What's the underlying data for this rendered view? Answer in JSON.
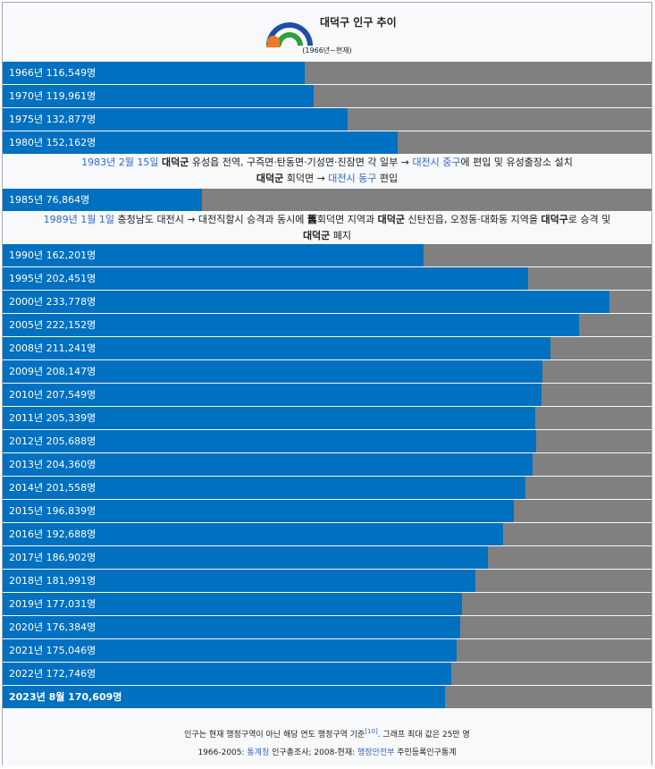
{
  "title": "대덕구 인구 추이",
  "subtitle": "(1966년~현재)",
  "colors": {
    "bar": "#0070c0",
    "track": "#808080",
    "link": "#3366cc"
  },
  "chart_data": {
    "type": "bar",
    "orientation": "horizontal",
    "title": "대덕구 인구 추이",
    "subtitle": "(1966년~현재)",
    "xlim": [
      0,
      250000
    ],
    "categories": [
      "1966년",
      "1970년",
      "1975년",
      "1980년",
      "1985년",
      "1990년",
      "1995년",
      "2000년",
      "2005년",
      "2008년",
      "2009년",
      "2010년",
      "2011년",
      "2012년",
      "2013년",
      "2014년",
      "2015년",
      "2016년",
      "2017년",
      "2018년",
      "2019년",
      "2020년",
      "2021년",
      "2022년",
      "2023년 8월"
    ],
    "values": [
      116549,
      119961,
      132877,
      152162,
      76864,
      162201,
      202451,
      233778,
      222152,
      211241,
      208147,
      207549,
      205339,
      205688,
      204360,
      201558,
      196839,
      192688,
      186902,
      181991,
      177031,
      176384,
      175046,
      172746,
      170609
    ],
    "data_labels": [
      "1966년 116,549명",
      "1970년 119,961명",
      "1975년 132,877명",
      "1980년 152,162명",
      "1985년 76,864명",
      "1990년 162,201명",
      "1995년 202,451명",
      "2000년 233,778명",
      "2005년 222,152명",
      "2008년 211,241명",
      "2009년 208,147명",
      "2010년 207,549명",
      "2011년 205,339명",
      "2012년 205,688명",
      "2013년 204,360명",
      "2014년 201,558명",
      "2015년 196,839명",
      "2016년 192,688명",
      "2017년 186,902명",
      "2018년 181,991명",
      "2019년 177,031명",
      "2020년 176,384명",
      "2021년 175,046명",
      "2022년 172,746명",
      "2023년 8월 170,609명"
    ]
  },
  "notes": [
    {
      "after_index": 3,
      "lines": [
        [
          {
            "t": "1983년 2월 15일",
            "c": "link"
          },
          {
            "t": " "
          },
          {
            "t": "대덕군",
            "c": "strong"
          },
          {
            "t": " 유성읍 전역, 구즉면·탄동면·기성면·진잠면 각 일부 → "
          },
          {
            "t": "대전시 중구",
            "c": "link"
          },
          {
            "t": "에 편입 및 유성출장소 설치"
          }
        ],
        [
          {
            "t": "대덕군",
            "c": "strong"
          },
          {
            "t": " 회덕면 → "
          },
          {
            "t": "대전시 동구",
            "c": "link"
          },
          {
            "t": " 편입"
          }
        ]
      ]
    },
    {
      "after_index": 4,
      "lines": [
        [
          {
            "t": "1989년 1월 1일",
            "c": "link"
          },
          {
            "t": " 충청남도 대전시 → 대전직할시 승격과 동시에 "
          },
          {
            "t": "舊",
            "c": "strong"
          },
          {
            "t": "회덕면 지역과 "
          },
          {
            "t": "대덕군",
            "c": "strong"
          },
          {
            "t": " 신탄진읍, 오정동·대화동 지역을 "
          },
          {
            "t": "대덕구",
            "c": "strong"
          },
          {
            "t": "로 승격 및"
          }
        ],
        [
          {
            "t": "대덕군",
            "c": "strong"
          },
          {
            "t": " 폐지"
          }
        ]
      ]
    }
  ],
  "footer": {
    "line1_text": "인구는 현재 행정구역이 아닌 해당 연도 행정구역 기준",
    "line1_ref": "[10]",
    "line1_tail": ". 그래프 최대 값은 25만 명",
    "line2": [
      {
        "t": "1966-2005: "
      },
      {
        "t": "통계청",
        "c": "link"
      },
      {
        "t": " 인구총조사; 2008-현재: "
      },
      {
        "t": "행정안전부",
        "c": "link"
      },
      {
        "t": " 주민등록인구통계"
      }
    ]
  }
}
